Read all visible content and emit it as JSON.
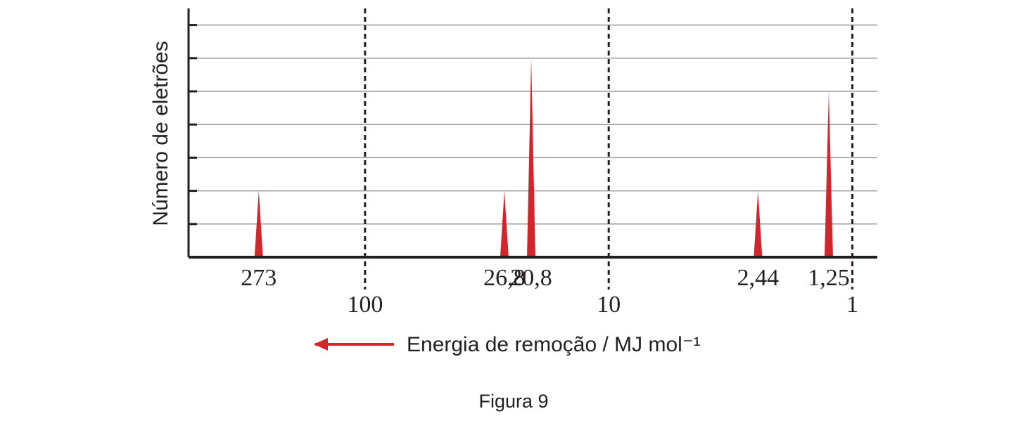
{
  "chart_data": {
    "type": "spike",
    "ylabel": "Número de eletrões",
    "xlabel": "Energia de remoção / MJ mol⁻¹",
    "caption": "Figura 9",
    "x": [
      273,
      26.8,
      20.8,
      2.44,
      1.25
    ],
    "value_labels": [
      "273",
      "26,8",
      "20,8",
      "2,44",
      "1,25"
    ],
    "values": [
      2,
      2,
      6,
      2,
      5
    ],
    "color": "#d1262b",
    "xscale": "log",
    "xlim": [
      530,
      0.79
    ],
    "xticks": [
      100,
      10,
      1
    ],
    "ylim": [
      0,
      7.5
    ],
    "yticks": [
      1,
      2,
      3,
      4,
      5,
      6,
      7
    ],
    "grid": true
  }
}
